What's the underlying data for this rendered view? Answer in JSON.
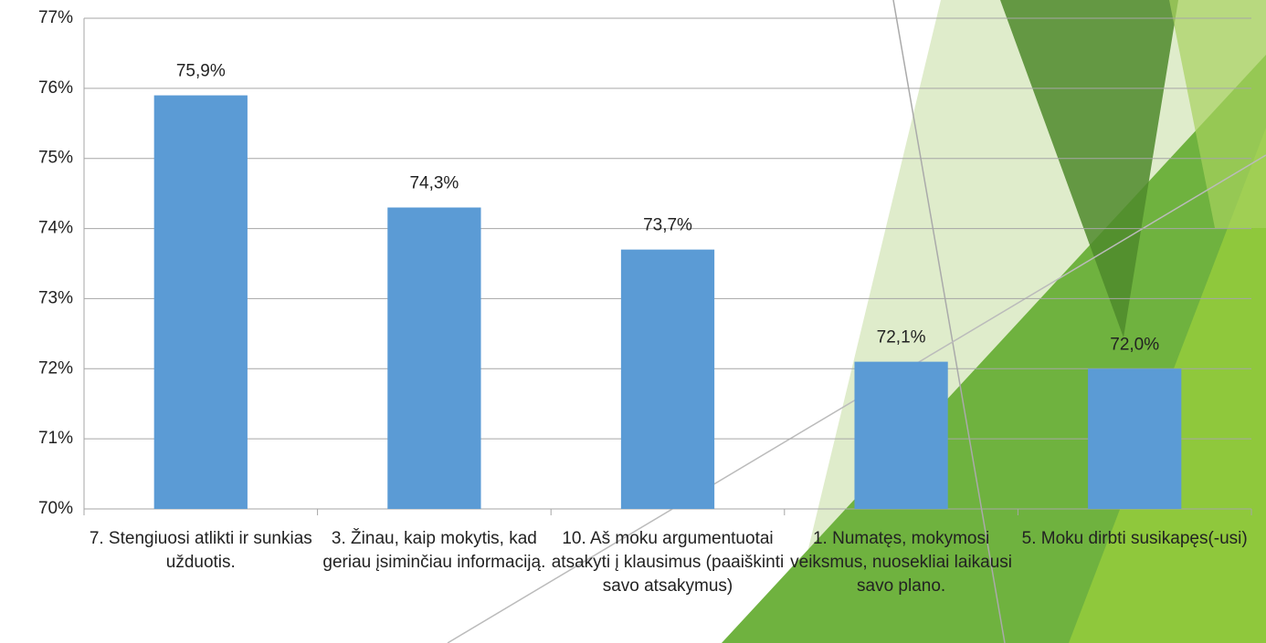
{
  "chart_data": {
    "type": "bar",
    "categories": [
      "7. Stengiuosi atlikti ir sunkias užduotis.",
      "3. Žinau, kaip mokytis, kad geriau įsiminčiau informaciją.",
      "10. Aš moku argumentuotai atsakyti į klausimus (paaiškinti savo atsakymus)",
      "1. Numatęs, mokymosi veiksmus, nuosekliai laikausi savo plano.",
      "5. Moku dirbti susikapęs(-usi)"
    ],
    "values": [
      75.9,
      74.3,
      73.7,
      72.1,
      72.0
    ],
    "value_labels": [
      "75,9%",
      "74,3%",
      "73,7%",
      "72,1%",
      "72,0%"
    ],
    "color": "#5b9bd5",
    "ylim": [
      70,
      77
    ],
    "yticks": [
      {
        "value": 70,
        "label": "70%"
      },
      {
        "value": 71,
        "label": "71%"
      },
      {
        "value": 72,
        "label": "72%"
      },
      {
        "value": 73,
        "label": "73%"
      },
      {
        "value": 74,
        "label": "74%"
      },
      {
        "value": 75,
        "label": "75%"
      },
      {
        "value": 76,
        "label": "76%"
      },
      {
        "value": 77,
        "label": "77%"
      }
    ],
    "grid": true
  }
}
